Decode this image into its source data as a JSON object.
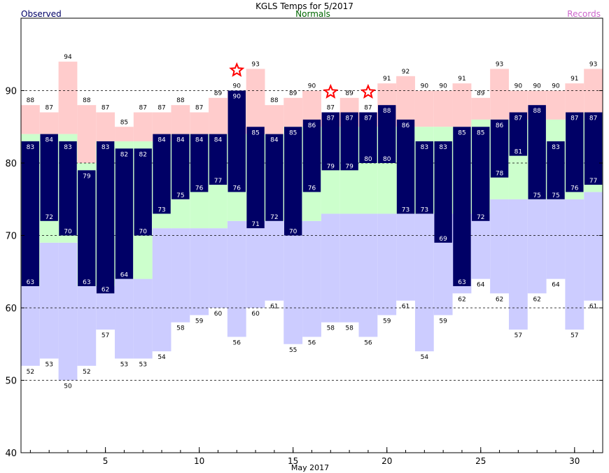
{
  "chart_data": {
    "type": "bar",
    "title": "KGLS Temps for  5/2017",
    "legend": {
      "observed": "Observed",
      "normals": "Normals",
      "records": "Records",
      "placement": "top"
    },
    "xlabel": "May 2017",
    "ylabel": "",
    "ylim": [
      40,
      100
    ],
    "yticks": [
      40,
      50,
      60,
      70,
      80,
      90
    ],
    "xticks": [
      5,
      10,
      15,
      20,
      25,
      30
    ],
    "grid_lines_y": [
      50,
      60,
      70,
      80,
      90
    ],
    "days": [
      1,
      2,
      3,
      4,
      5,
      6,
      7,
      8,
      9,
      10,
      11,
      12,
      13,
      14,
      15,
      16,
      17,
      18,
      19,
      20,
      21,
      22,
      23,
      24,
      25,
      26,
      27,
      28,
      29,
      30,
      31
    ],
    "observed_high": [
      83,
      84,
      83,
      79,
      83,
      82,
      82,
      84,
      84,
      84,
      84,
      90,
      85,
      84,
      85,
      86,
      87,
      87,
      87,
      88,
      86,
      83,
      83,
      85,
      85,
      86,
      87,
      88,
      83,
      87,
      87
    ],
    "observed_low": [
      63,
      72,
      70,
      63,
      62,
      64,
      70,
      73,
      75,
      76,
      77,
      76,
      71,
      72,
      70,
      76,
      79,
      79,
      80,
      80,
      73,
      73,
      69,
      63,
      72,
      78,
      81,
      75,
      75,
      76,
      77
    ],
    "record_high": [
      88,
      87,
      94,
      88,
      87,
      85,
      87,
      87,
      88,
      87,
      89,
      90,
      93,
      88,
      89,
      90,
      87,
      89,
      87,
      91,
      92,
      90,
      90,
      91,
      89,
      93,
      90,
      90,
      90,
      91,
      93
    ],
    "record_low": [
      52,
      53,
      50,
      52,
      57,
      53,
      53,
      54,
      58,
      59,
      60,
      56,
      60,
      61,
      55,
      56,
      58,
      58,
      56,
      59,
      61,
      54,
      59,
      62,
      64,
      62,
      57,
      62,
      64,
      57,
      61
    ],
    "normal_high": [
      84,
      84,
      84,
      80,
      83,
      83,
      83,
      83,
      84,
      84,
      84,
      84,
      84,
      84,
      85,
      85,
      85,
      85,
      85,
      85,
      85,
      85,
      85,
      85,
      86,
      86,
      86,
      86,
      86,
      86,
      87
    ],
    "normal_low": [
      63,
      69,
      69,
      63,
      63,
      64,
      64,
      71,
      71,
      71,
      71,
      72,
      72,
      72,
      72,
      72,
      73,
      73,
      73,
      73,
      73,
      73,
      73,
      73,
      73,
      75,
      75,
      75,
      75,
      75,
      76
    ],
    "record_high_set_days": [
      12,
      17,
      19
    ],
    "colors": {
      "observed": "#000066",
      "observed_label": "#ffffff",
      "normal": "#ccffcc",
      "record_high": "#ffcccc",
      "record_low": "#ccccff",
      "title": "#000000",
      "legend_observed": "#000066",
      "legend_normals": "#006600",
      "legend_records": "#cc66cc",
      "star": "#ff0000"
    }
  }
}
